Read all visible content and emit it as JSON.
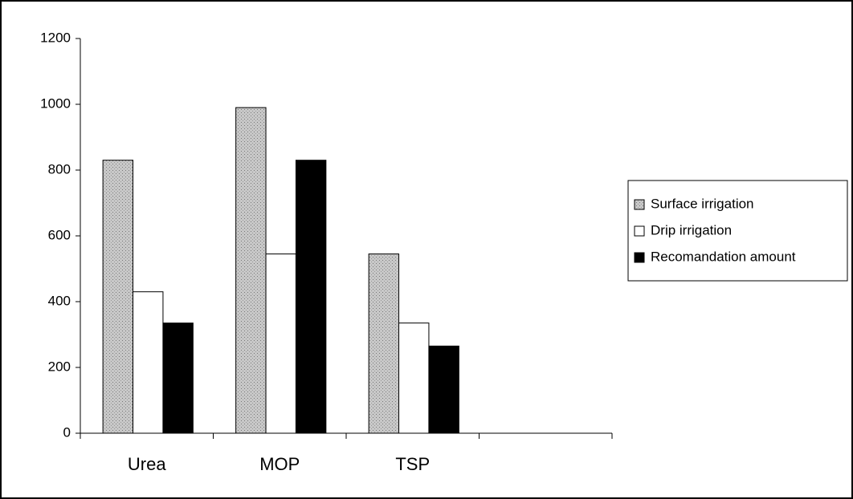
{
  "chart_data": {
    "type": "bar",
    "categories": [
      "Urea",
      "MOP",
      "TSP",
      null
    ],
    "series": [
      {
        "name": "Surface irrigation",
        "color": "#b8b8b8",
        "values": [
          830,
          990,
          545,
          null
        ]
      },
      {
        "name": "Drip irrigation",
        "color": "#ffffff",
        "values": [
          430,
          545,
          335,
          null
        ]
      },
      {
        "name": "Recomandation amount",
        "color": "#000000",
        "values": [
          335,
          830,
          265,
          null
        ]
      }
    ],
    "ylim": [
      0,
      1200
    ],
    "yticks": [
      0,
      200,
      400,
      600,
      800,
      1000,
      1200
    ],
    "legend": "right"
  }
}
